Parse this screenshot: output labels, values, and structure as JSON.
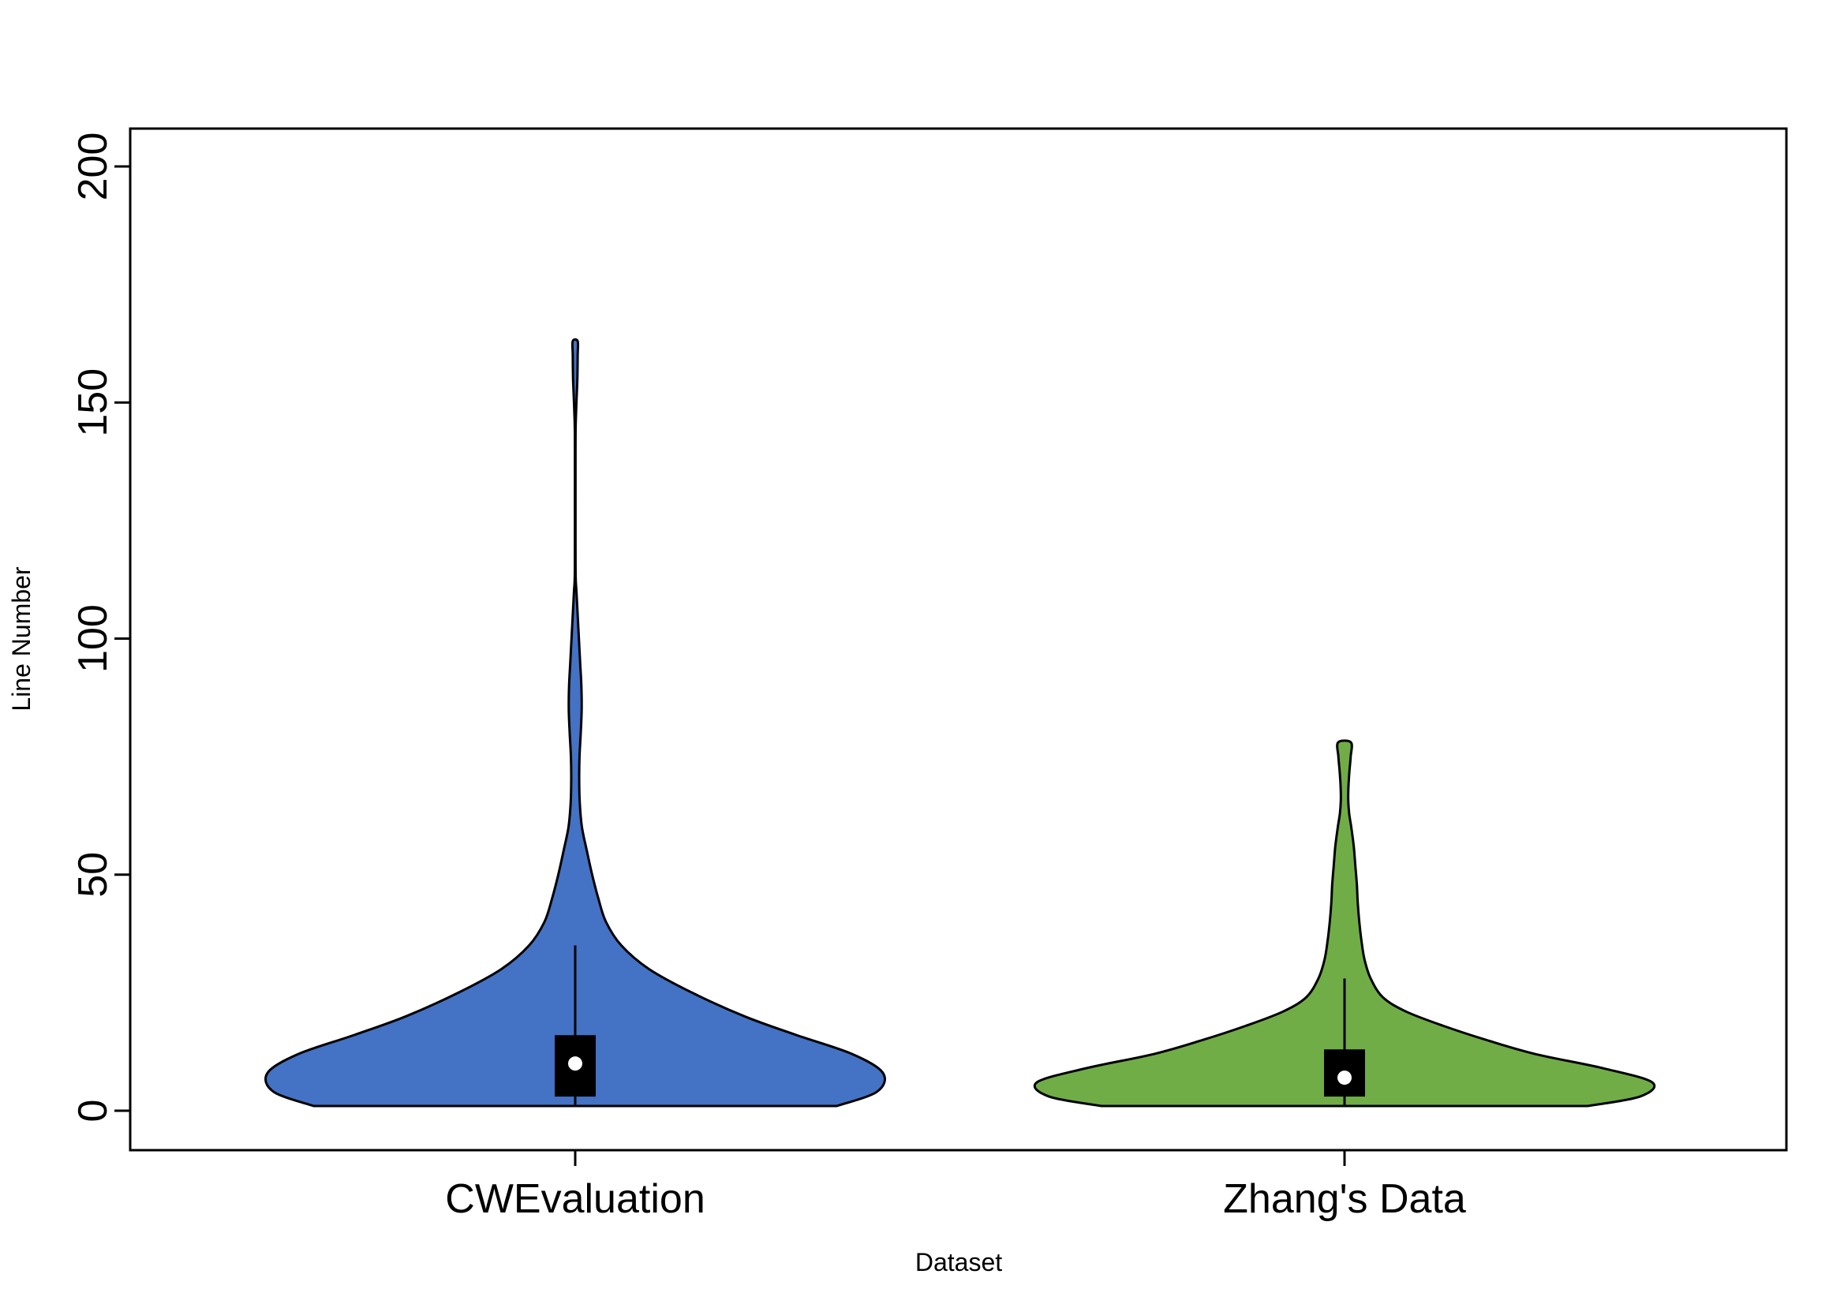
{
  "chart_data": {
    "type": "violin",
    "title": "",
    "xlabel": "Dataset",
    "ylabel": "Line Number",
    "ylim": [
      -8,
      208
    ],
    "yticks": [
      0,
      50,
      100,
      150,
      200
    ],
    "categories": [
      "CWEvaluation",
      "Zhang's Data"
    ],
    "grid": false,
    "series": [
      {
        "color": "#4472c4",
        "min": 1,
        "max": 163,
        "whisker_low": 1,
        "whisker_high": 35,
        "q1": 3,
        "q3": 16,
        "median": 10,
        "density_profile": [
          [
            1,
            0.85
          ],
          [
            4,
            0.98
          ],
          [
            8,
            1.0
          ],
          [
            12,
            0.9
          ],
          [
            16,
            0.72
          ],
          [
            20,
            0.55
          ],
          [
            25,
            0.38
          ],
          [
            30,
            0.24
          ],
          [
            35,
            0.15
          ],
          [
            40,
            0.1
          ],
          [
            45,
            0.075
          ],
          [
            50,
            0.055
          ],
          [
            55,
            0.038
          ],
          [
            60,
            0.022
          ],
          [
            65,
            0.015
          ],
          [
            70,
            0.013
          ],
          [
            75,
            0.014
          ],
          [
            80,
            0.018
          ],
          [
            85,
            0.021
          ],
          [
            90,
            0.02
          ],
          [
            95,
            0.016
          ],
          [
            100,
            0.012
          ],
          [
            105,
            0.008
          ],
          [
            110,
            0.004
          ],
          [
            113,
            0.0015
          ],
          [
            120,
            0.001
          ],
          [
            130,
            0.001
          ],
          [
            140,
            0.001
          ],
          [
            145,
            0.0015
          ],
          [
            150,
            0.004
          ],
          [
            155,
            0.007
          ],
          [
            160,
            0.008
          ],
          [
            163,
            0.008
          ]
        ]
      },
      {
        "color": "#70ad47",
        "min": 1,
        "max": 78,
        "whisker_low": 1,
        "whisker_high": 28,
        "q1": 3,
        "q3": 13,
        "median": 7,
        "density_profile": [
          [
            1,
            0.79
          ],
          [
            3,
            0.96
          ],
          [
            6,
            1.0
          ],
          [
            9,
            0.84
          ],
          [
            12,
            0.62
          ],
          [
            15,
            0.46
          ],
          [
            18,
            0.32
          ],
          [
            21,
            0.2
          ],
          [
            24,
            0.125
          ],
          [
            28,
            0.085
          ],
          [
            32,
            0.065
          ],
          [
            36,
            0.055
          ],
          [
            40,
            0.048
          ],
          [
            44,
            0.043
          ],
          [
            48,
            0.04
          ],
          [
            52,
            0.035
          ],
          [
            56,
            0.03
          ],
          [
            60,
            0.022
          ],
          [
            63,
            0.015
          ],
          [
            66,
            0.012
          ],
          [
            69,
            0.013
          ],
          [
            72,
            0.016
          ],
          [
            75,
            0.02
          ],
          [
            78,
            0.021
          ]
        ]
      }
    ]
  }
}
